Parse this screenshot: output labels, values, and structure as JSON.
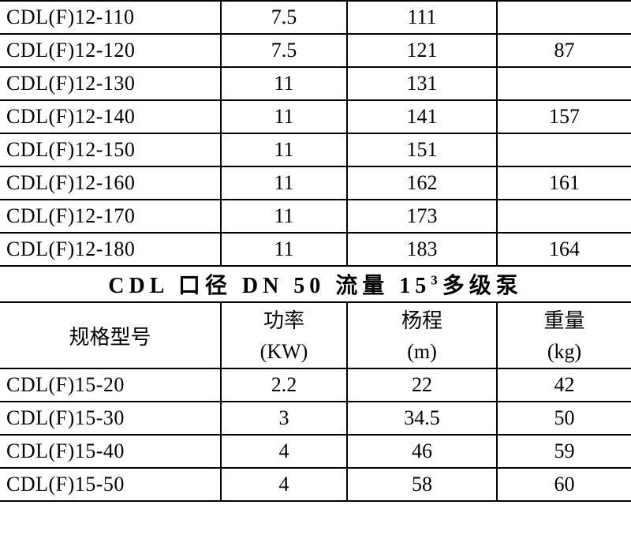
{
  "rows1": [
    {
      "model": "CDL(F)12-110",
      "kw": "7.5",
      "m": "111",
      "kg": ""
    },
    {
      "model": "CDL(F)12-120",
      "kw": "7.5",
      "m": "121",
      "kg": "87"
    },
    {
      "model": "CDL(F)12-130",
      "kw": "11",
      "m": "131",
      "kg": ""
    },
    {
      "model": "CDL(F)12-140",
      "kw": "11",
      "m": "141",
      "kg": "157"
    },
    {
      "model": "CDL(F)12-150",
      "kw": "11",
      "m": "151",
      "kg": ""
    },
    {
      "model": "CDL(F)12-160",
      "kw": "11",
      "m": "162",
      "kg": "161"
    },
    {
      "model": "CDL(F)12-170",
      "kw": "11",
      "m": "173",
      "kg": ""
    },
    {
      "model": "CDL(F)12-180",
      "kw": "11",
      "m": "183",
      "kg": "164"
    }
  ],
  "section_title": "CDL 口径 DN 50 流量 15³多级泵",
  "headers": {
    "model": "规格型号",
    "kw_l1": "功率",
    "kw_l2": "(KW)",
    "m_l1": "杨程",
    "m_l2": "(m)",
    "kg_l1": "重量",
    "kg_l2": "(kg)"
  },
  "rows2": [
    {
      "model": "CDL(F)15-20",
      "kw": "2.2",
      "m": "22",
      "kg": "42"
    },
    {
      "model": "CDL(F)15-30",
      "kw": "3",
      "m": "34.5",
      "kg": "50"
    },
    {
      "model": "CDL(F)15-40",
      "kw": "4",
      "m": "46",
      "kg": "59"
    },
    {
      "model": "CDL(F)15-50",
      "kw": "4",
      "m": "58",
      "kg": "60"
    }
  ]
}
